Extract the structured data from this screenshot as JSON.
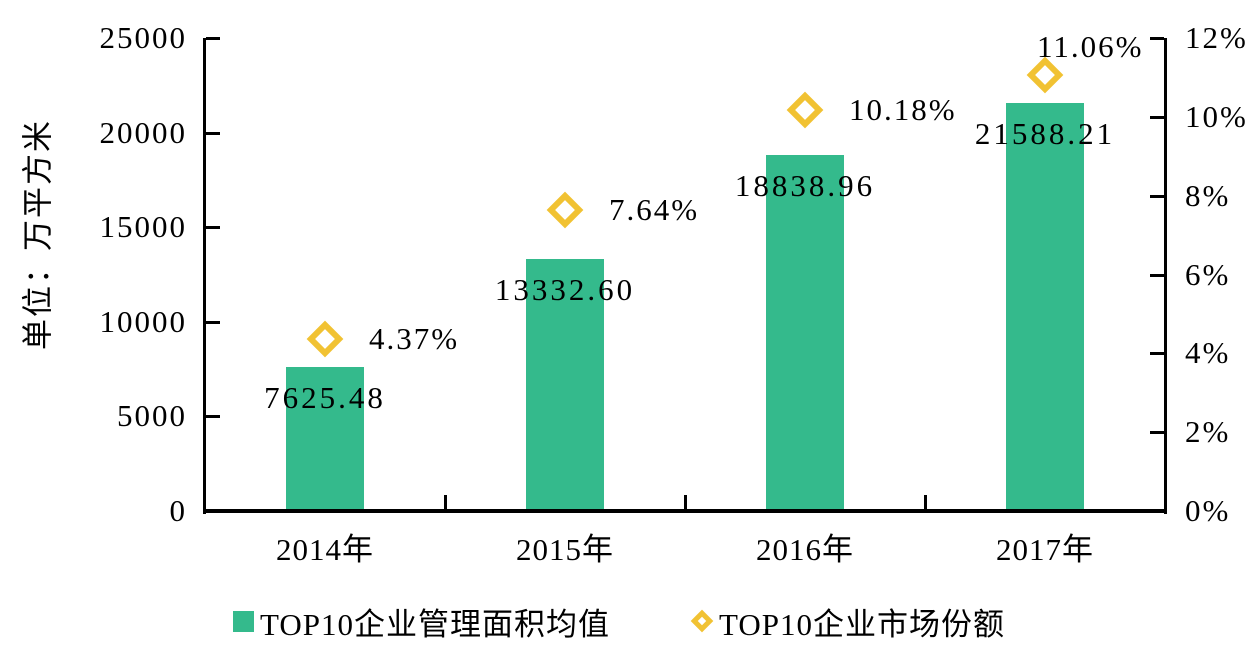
{
  "chart_data": {
    "type": "bar",
    "subtype": "combo-bar-with-diamond-markers",
    "categories": [
      "2014年",
      "2015年",
      "2016年",
      "2017年"
    ],
    "series": [
      {
        "name": "TOP10企业管理面积均值",
        "type": "bar",
        "axis": "left",
        "values": [
          7625.48,
          13332.6,
          18838.96,
          21588.21
        ],
        "labels": [
          "7625.48",
          "13332.60",
          "18838.96",
          "21588.21"
        ],
        "color": "#34BA8C",
        "marker": "square"
      },
      {
        "name": "TOP10企业市场份额",
        "type": "scatter",
        "axis": "right",
        "values": [
          4.37,
          7.64,
          10.18,
          11.06
        ],
        "labels": [
          "4.37%",
          "7.64%",
          "10.18%",
          "11.06%"
        ],
        "color": "#F1C233",
        "marker": "hollow-diamond"
      }
    ],
    "left_axis": {
      "title": "单位：万平方米",
      "min": 0,
      "max": 25000,
      "step": 5000,
      "ticks": [
        "0",
        "5000",
        "10000",
        "15000",
        "20000",
        "25000"
      ]
    },
    "right_axis": {
      "min": 0,
      "max": 12,
      "step": 2,
      "ticks": [
        "0%",
        "2%",
        "4%",
        "6%",
        "8%",
        "10%",
        "12%"
      ]
    },
    "grid": false,
    "legend_position": "bottom",
    "background": "#FFFFFF",
    "axis_color": "#000000",
    "text_color": "#000000"
  }
}
